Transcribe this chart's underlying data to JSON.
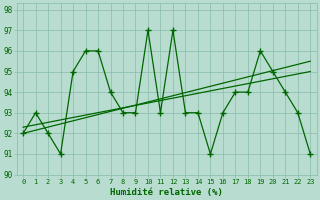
{
  "x": [
    0,
    1,
    2,
    3,
    4,
    5,
    6,
    7,
    8,
    9,
    10,
    11,
    12,
    13,
    14,
    15,
    16,
    17,
    18,
    19,
    20,
    21,
    22,
    23
  ],
  "y": [
    92,
    93,
    92,
    91,
    95,
    96,
    96,
    94,
    93,
    93,
    97,
    93,
    97,
    93,
    93,
    91,
    93,
    94,
    94,
    96,
    95,
    94,
    93,
    91
  ],
  "xmin": 0,
  "xmax": 23,
  "ymin": 90,
  "ymax": 98,
  "xlabel": "Humidité relative (%)",
  "bg_color": "#b8ddd0",
  "line_color": "#006600",
  "grid_color": "#88bbaa",
  "xlabel_color": "#006600",
  "trend1_x": [
    0,
    23
  ],
  "trend1_y": [
    92.0,
    95.5
  ],
  "trend2_x": [
    0,
    23
  ],
  "trend2_y": [
    92.3,
    95.0
  ]
}
